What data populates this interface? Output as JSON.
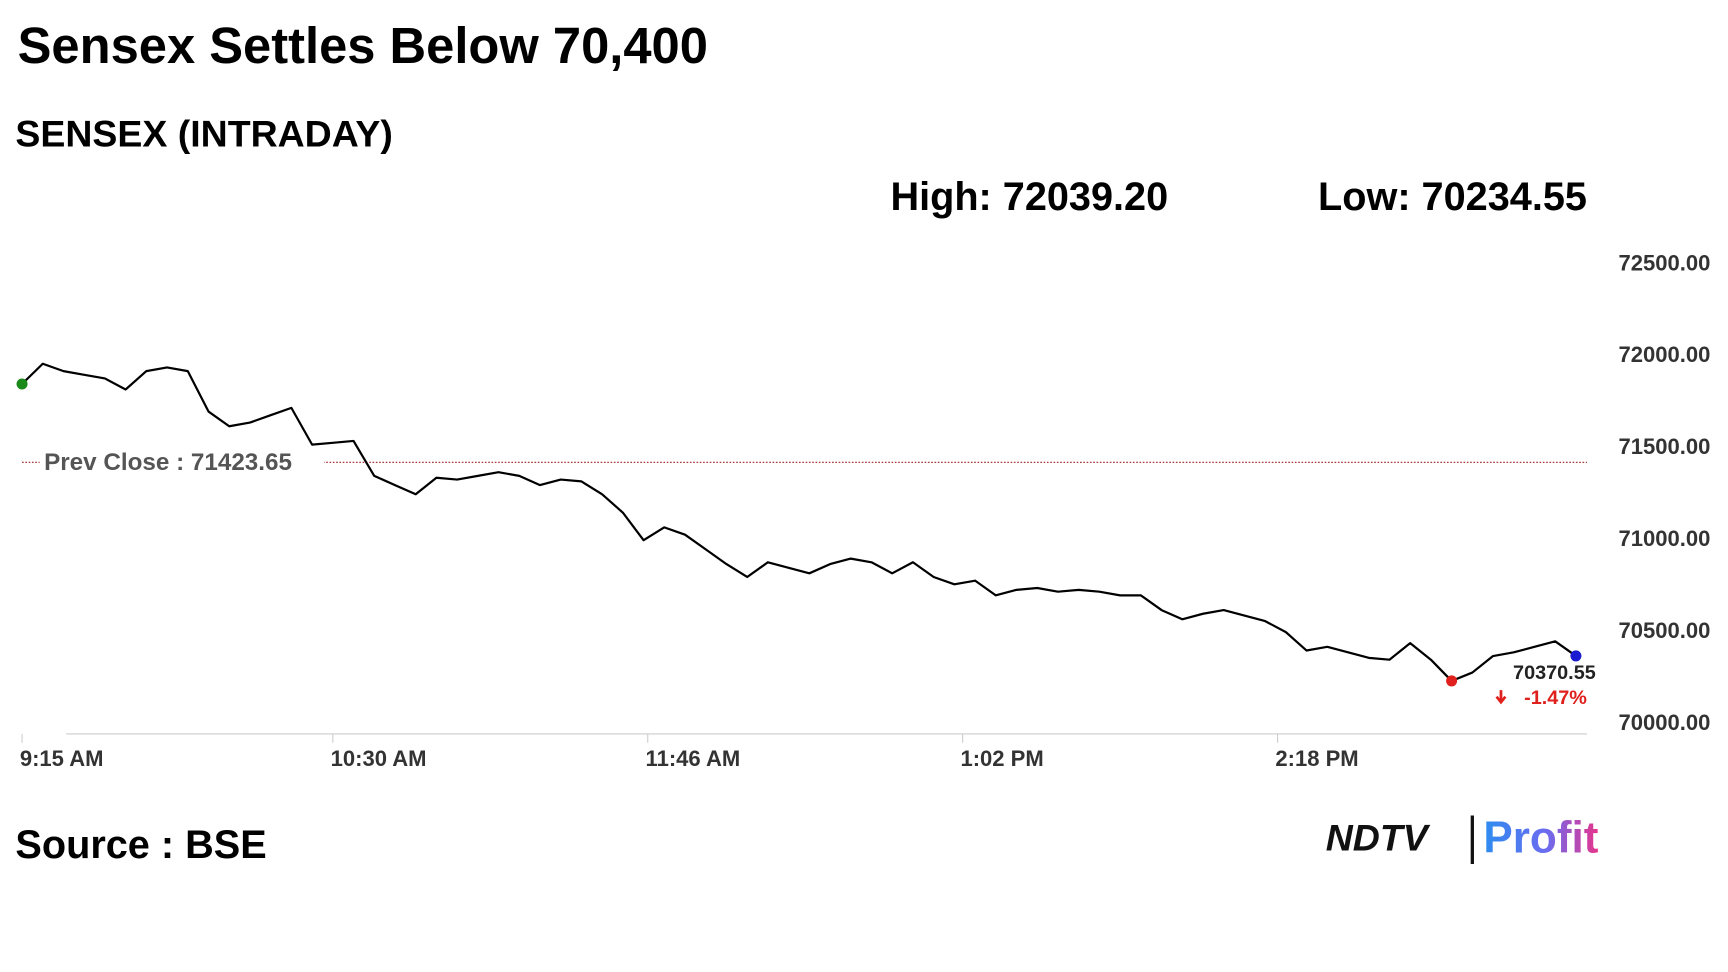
{
  "chart_data": {
    "type": "line",
    "title": "Sensex Settles Below 70,400",
    "subtitle": "SENSEX (INTRADAY)",
    "high": "High: 72039.20",
    "low": "Low: 70234.55",
    "source": "Source : BSE",
    "logo": [
      "NDTV",
      "Profit"
    ],
    "prev_close": {
      "value": 71423.65,
      "label": "Prev Close : 71423.65"
    },
    "change": {
      "value": -1.47,
      "label": "-1.47%"
    },
    "x": [
      "9:15 AM",
      "9:20 AM",
      "9:25 AM",
      "9:30 AM",
      "9:35 AM",
      "9:40 AM",
      "9:45 AM",
      "9:50 AM",
      "9:55 AM",
      "10:00 AM",
      "10:05 AM",
      "10:10 AM",
      "10:15 AM",
      "10:20 AM",
      "10:25 AM",
      "10:30 AM",
      "10:35 AM",
      "10:40 AM",
      "10:45 AM",
      "10:50 AM",
      "10:55 AM",
      "11:00 AM",
      "11:05 AM",
      "11:10 AM",
      "11:15 AM",
      "11:20 AM",
      "11:25 AM",
      "11:30 AM",
      "11:35 AM",
      "11:40 AM",
      "11:45 AM",
      "11:50 AM",
      "11:55 AM",
      "12:00 PM",
      "12:05 PM",
      "12:10 PM",
      "12:15 PM",
      "12:20 PM",
      "12:25 PM",
      "12:30 PM",
      "12:35 PM",
      "12:40 PM",
      "12:45 PM",
      "12:50 PM",
      "12:55 PM",
      "1:00 PM",
      "1:05 PM",
      "1:10 PM",
      "1:15 PM",
      "1:20 PM",
      "1:25 PM",
      "1:30 PM",
      "1:35 PM",
      "1:40 PM",
      "1:45 PM",
      "1:50 PM",
      "1:55 PM",
      "2:00 PM",
      "2:05 PM",
      "2:10 PM",
      "2:15 PM",
      "2:20 PM",
      "2:25 PM",
      "2:30 PM",
      "2:35 PM",
      "2:40 PM",
      "2:45 PM",
      "2:50 PM",
      "2:55 PM",
      "3:00 PM",
      "3:05 PM",
      "3:10 PM",
      "3:15 PM",
      "3:20 PM",
      "3:25 PM",
      "3:30 PM"
    ],
    "series": [
      {
        "name": "SENSEX",
        "color": "#000000",
        "values": [
          71850,
          71960,
          71920,
          71900,
          71880,
          71820,
          71920,
          71940,
          71920,
          71700,
          71620,
          71640,
          71680,
          71720,
          71520,
          71530,
          71540,
          71350,
          71300,
          71250,
          71340,
          71330,
          71350,
          71370,
          71350,
          71300,
          71330,
          71320,
          71250,
          71150,
          71000,
          71070,
          71030,
          70950,
          70870,
          70800,
          70880,
          70850,
          70820,
          70870,
          70900,
          70880,
          70820,
          70880,
          70800,
          70760,
          70780,
          70700,
          70730,
          70740,
          70720,
          70730,
          70720,
          70700,
          70700,
          70620,
          70570,
          70600,
          70620,
          70590,
          70560,
          70500,
          70400,
          70420,
          70390,
          70360,
          70350,
          70440,
          70350,
          70234.55,
          70280,
          70370,
          70390,
          70420,
          70450,
          70370.55
        ]
      }
    ],
    "xlim": [
      "9:15 AM",
      "3:30 PM"
    ],
    "xticks": [
      "9:15 AM",
      "10:30 AM",
      "11:46 AM",
      "1:02 PM",
      "2:18 PM"
    ],
    "ylim": [
      70000,
      72500
    ],
    "yticks": [
      {
        "value": 70000,
        "label": "70000.00"
      },
      {
        "value": 70500,
        "label": "70500.00"
      },
      {
        "value": 71000,
        "label": "71000.00"
      },
      {
        "value": 71500,
        "label": "71500.00"
      },
      {
        "value": 72000,
        "label": "72000.00"
      },
      {
        "value": 72500,
        "label": "72500.00"
      }
    ],
    "start_color": "#1a8a1a",
    "low_color": "#e0201c",
    "end_color": "#1a1ad0",
    "change_color": "#e0201c",
    "prev_close_color": "#a02020"
  }
}
